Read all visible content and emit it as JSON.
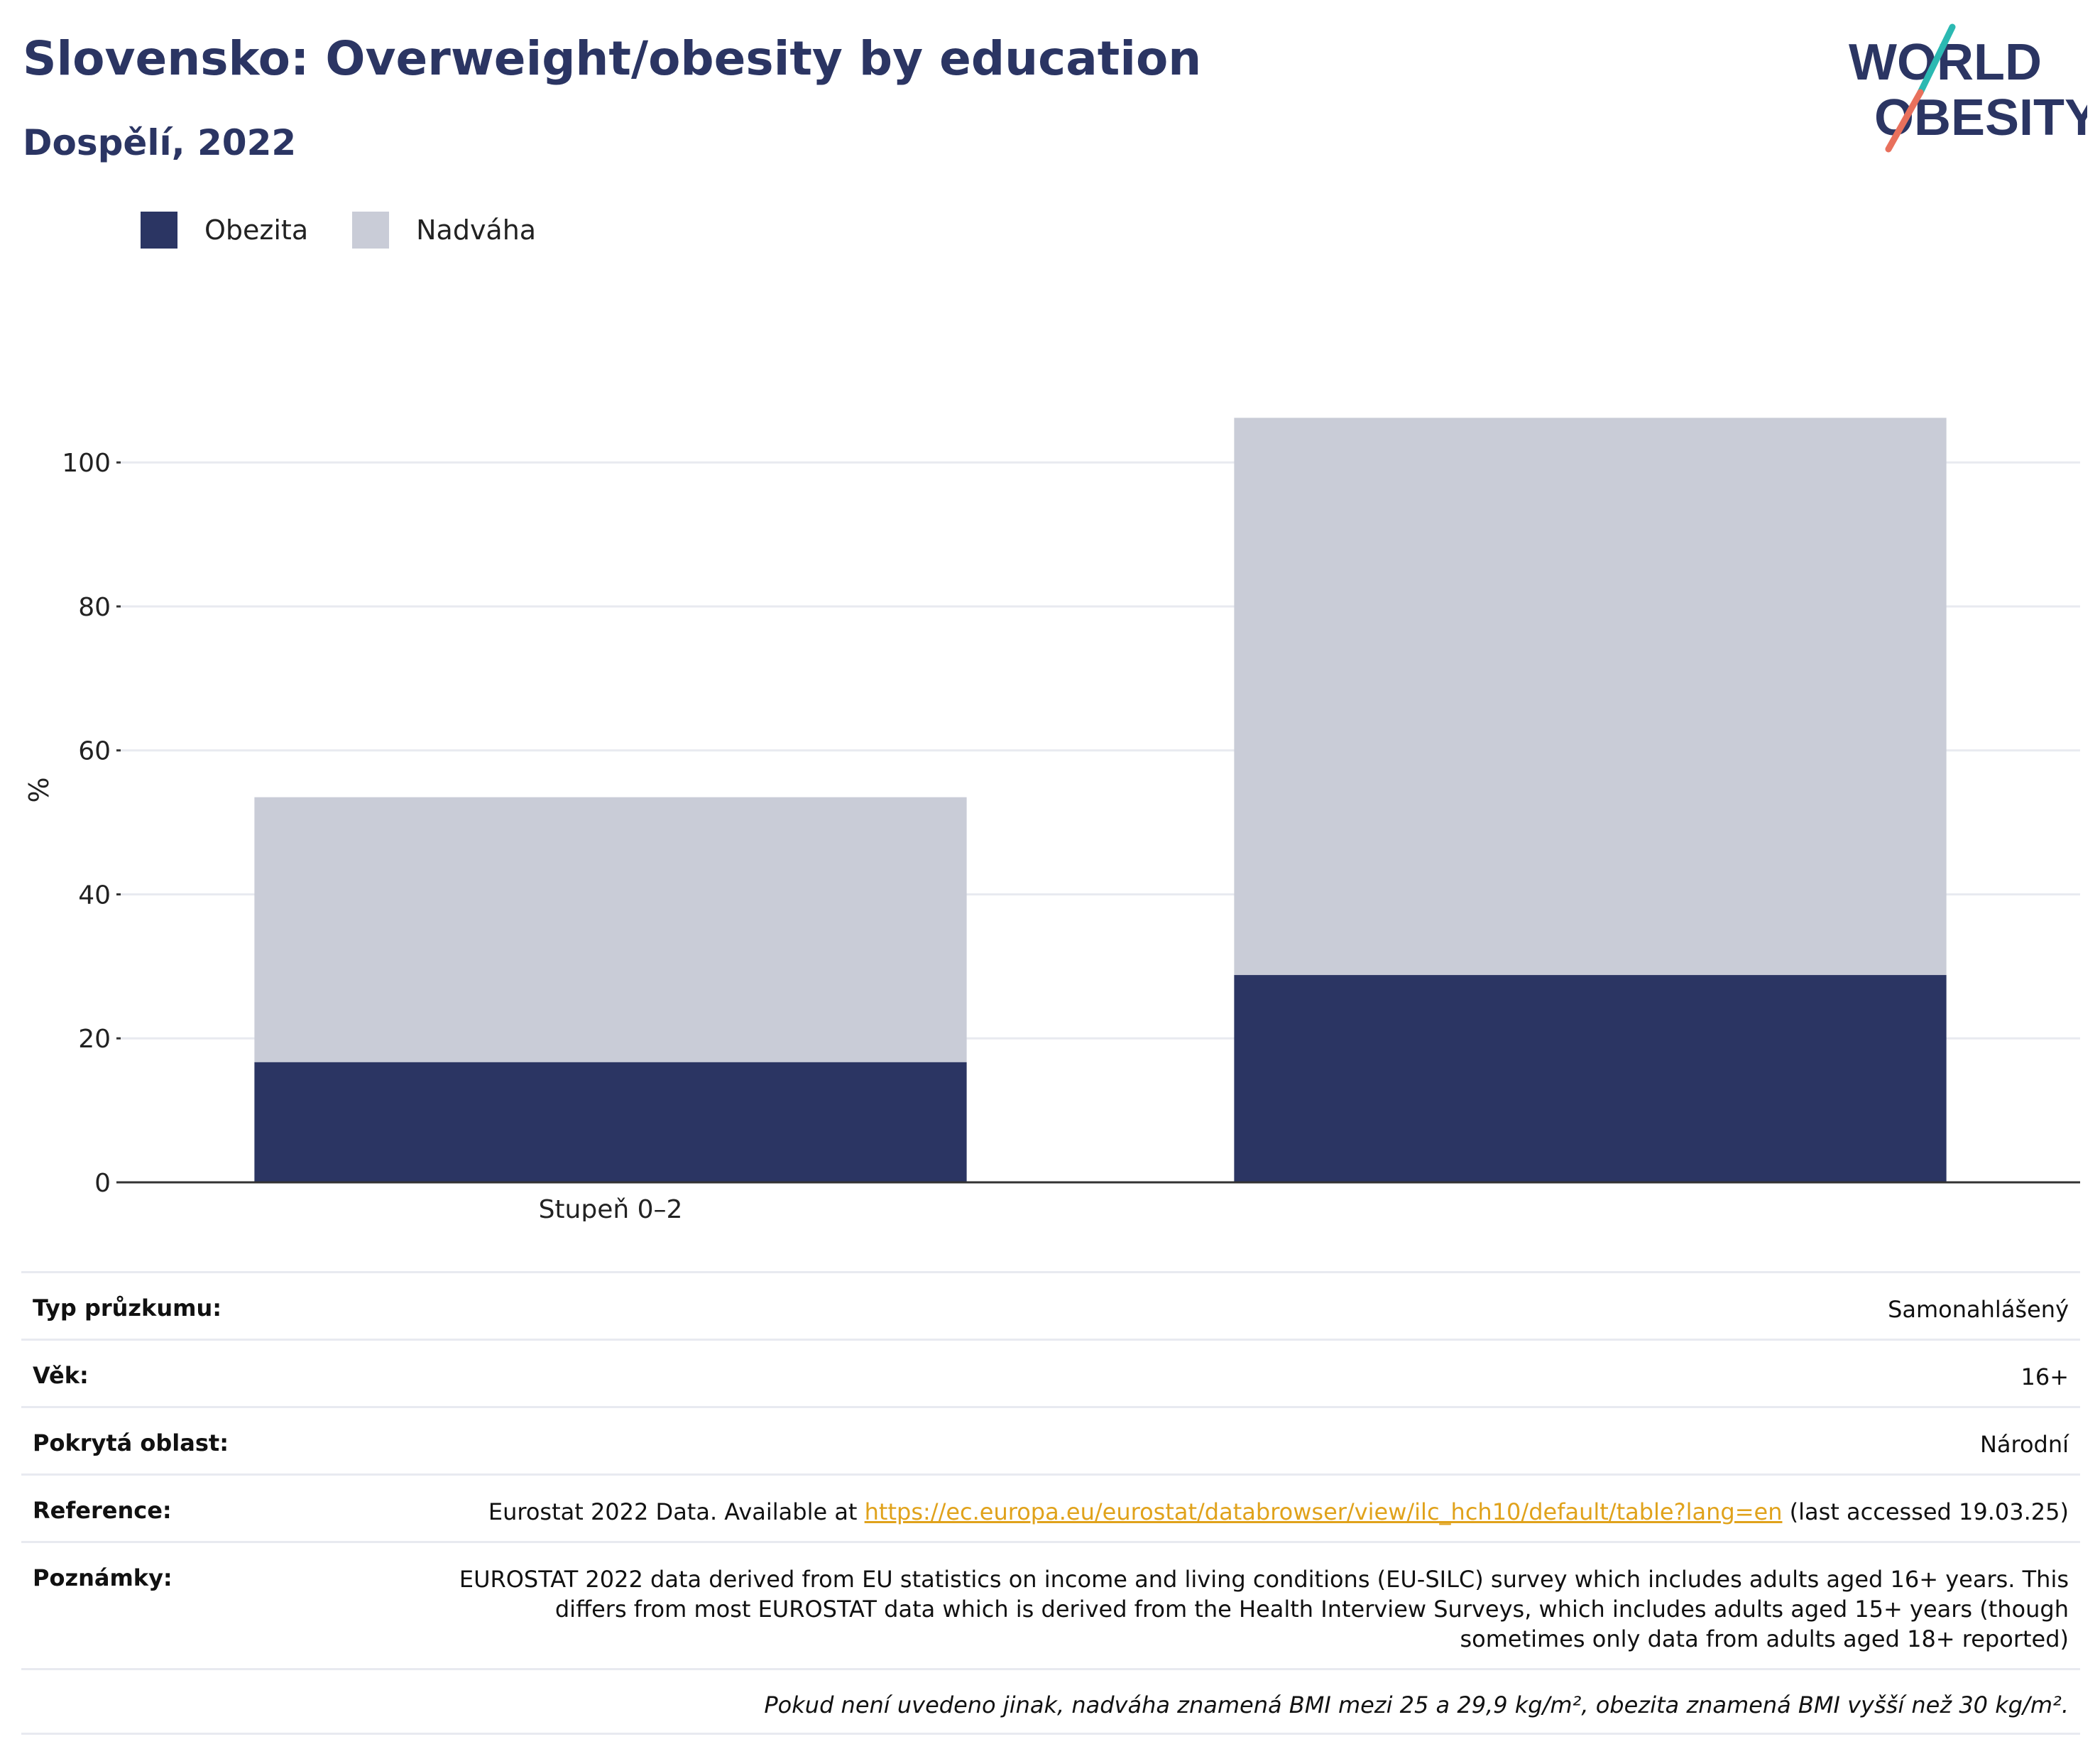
{
  "header": {
    "title": "Slovensko: Overweight/obesity by education",
    "subtitle": "Dospělí, 2022"
  },
  "logo": {
    "line1": "WORLD",
    "line2": "OBESITY",
    "colors": {
      "text": "#2b3563",
      "slash_teal": "#2bb9b2",
      "slash_coral": "#e8705c"
    }
  },
  "legend": [
    {
      "label": "Obezita",
      "color": "#2b3563"
    },
    {
      "label": "Nadváha",
      "color": "#c9ccd7"
    }
  ],
  "chart_data": {
    "type": "bar",
    "stacked": true,
    "categories": [
      "Stupeň 0–2",
      ""
    ],
    "series": [
      {
        "name": "Obezita",
        "color": "#2b3563",
        "values": [
          16.7,
          28.8
        ]
      },
      {
        "name": "Nadváha",
        "color": "#c9ccd7",
        "values": [
          36.8,
          77.4
        ]
      }
    ],
    "title": "Slovensko: Overweight/obesity by education",
    "subtitle": "Dospělí, 2022",
    "xlabel": "",
    "ylabel": "%",
    "yticks": [
      0,
      20,
      40,
      60,
      80,
      100
    ],
    "ylim": [
      0,
      109
    ],
    "grid": true,
    "legend_position": "top-left"
  },
  "meta": {
    "survey_type_label": "Typ průzkumu:",
    "survey_type_value": "Samonahlášený",
    "age_label": "Věk:",
    "age_value": "16+",
    "coverage_label": "Pokrytá oblast:",
    "coverage_value": "Národní",
    "reference_label": "Reference:",
    "reference_prefix": "Eurostat 2022 Data. Available at ",
    "reference_link": "https://ec.europa.eu/eurostat/databrowser/view/ilc_hch10/default/table?lang=en",
    "reference_suffix": " (last accessed 19.03.25)",
    "notes_label": "Poznámky:",
    "notes_value": "EUROSTAT 2022 data derived from EU statistics on income and living conditions (EU-SILC) survey which includes adults aged 16+ years. This differs from most EUROSTAT data which is derived from the Health Interview Surveys, which includes adults aged 15+ years (though sometimes only data from adults aged 18+ reported)",
    "footnote": "Pokud není uvedeno jinak, nadváha znamená BMI mezi 25 a 29,9 kg/m², obezita znamená BMI vyšší než 30 kg/m²."
  }
}
